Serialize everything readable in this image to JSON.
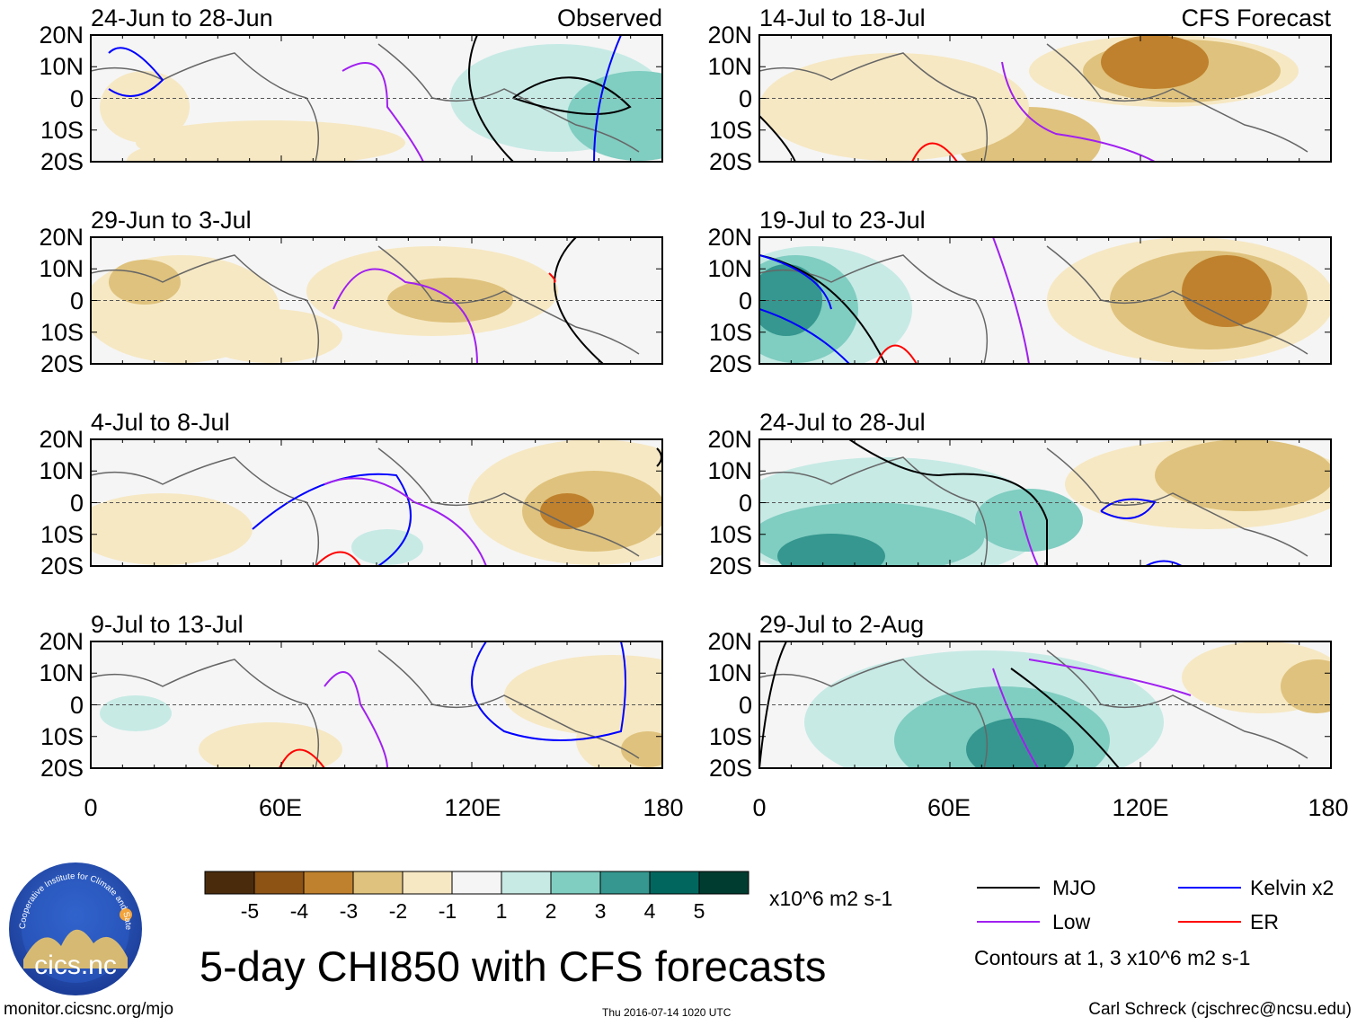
{
  "chart_data": {
    "type": "map",
    "title": "5-day CHI850 with CFS forecasts",
    "panel_column_labels": {
      "left": "Observed",
      "right": "CFS Forecast"
    },
    "panels": [
      {
        "column": "left",
        "period": "24-Jun to 28-Jun",
        "anomaly": "Observed"
      },
      {
        "column": "left",
        "period": "29-Jun to 3-Jul",
        "anomaly": "Observed"
      },
      {
        "column": "left",
        "period": "4-Jul to 8-Jul",
        "anomaly": "Observed"
      },
      {
        "column": "left",
        "period": "9-Jul to 13-Jul",
        "anomaly": "Observed"
      },
      {
        "column": "right",
        "period": "14-Jul to 18-Jul",
        "anomaly": "CFS Forecast"
      },
      {
        "column": "right",
        "period": "19-Jul to 23-Jul",
        "anomaly": "CFS Forecast"
      },
      {
        "column": "right",
        "period": "24-Jul to 28-Jul",
        "anomaly": "CFS Forecast"
      },
      {
        "column": "right",
        "period": "29-Jul to 2-Aug",
        "anomaly": "CFS Forecast"
      }
    ],
    "lat_ticks": [
      "20N",
      "10N",
      "0",
      "10S",
      "20S"
    ],
    "lon_ticks": [
      "0",
      "60E",
      "120E",
      "180"
    ],
    "lat_range": [
      -20,
      20
    ],
    "lon_range": [
      0,
      180
    ],
    "colorbar": {
      "unit": "x10^6 m2 s-1",
      "tick_labels": [
        "-5",
        "-4",
        "-3",
        "-2",
        "-1",
        "1",
        "2",
        "3",
        "4",
        "5"
      ],
      "colors": [
        "#4a2c0d",
        "#8c5314",
        "#bf812d",
        "#dfc27d",
        "#f6e8c3",
        "#f5f5f5",
        "#c7eae5",
        "#80cdc1",
        "#35978f",
        "#01665e",
        "#003c30"
      ]
    },
    "legend": [
      {
        "label": "MJO",
        "color": "#000000"
      },
      {
        "label": "Kelvin x2",
        "color": "#0000ff"
      },
      {
        "label": "Low",
        "color": "#a020f0"
      },
      {
        "label": "ER",
        "color": "#ff0000"
      }
    ],
    "contours_note": "Contours at 1, 3 x10^6 m2 s-1"
  },
  "footer": {
    "url": "monitor.cicsnc.org/mjo",
    "timestamp": "Thu 2016-07-14 1020 UTC",
    "credit": "Carl Schreck (cjschrec@ncsu.edu)"
  },
  "logo": {
    "text": "cics.nc",
    "ring_text": "Cooperative Institute for Climate and Satellites"
  }
}
